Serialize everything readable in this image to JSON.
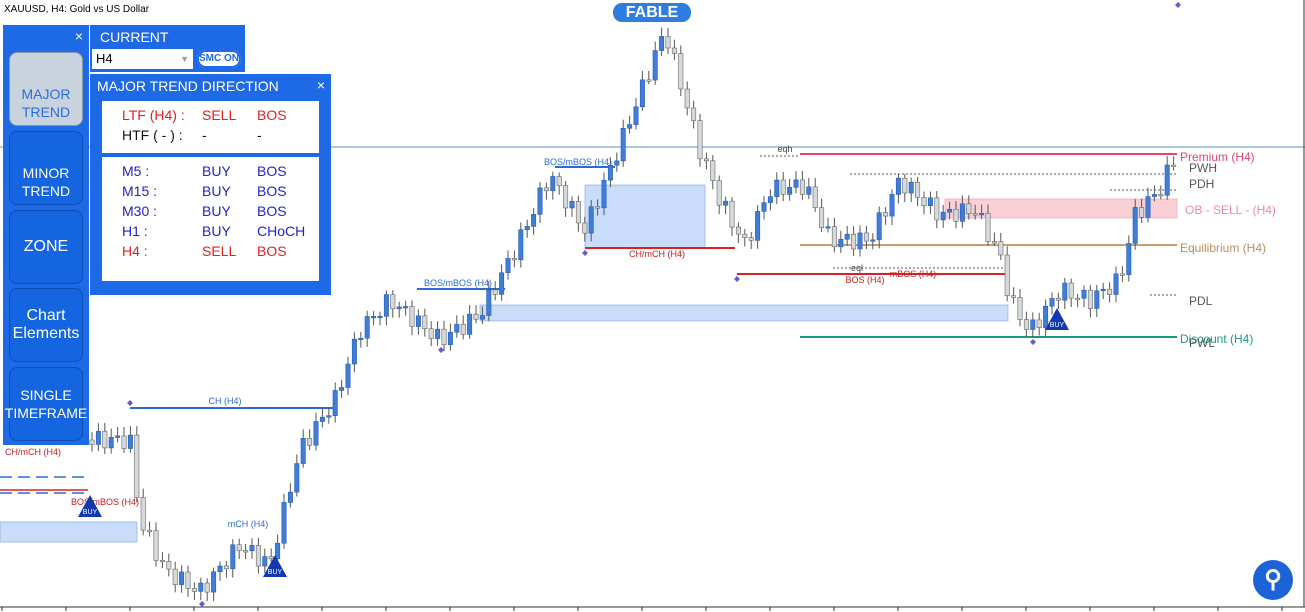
{
  "header": {
    "symbol": "XAUUSD, H4:  Gold vs US Dollar",
    "brand": "FABLE"
  },
  "side_menu": {
    "buttons": [
      "MAJOR TREND",
      "MINOR TREND",
      "ZONE",
      "Chart Elements",
      "SINGLE TIMEFRAME"
    ]
  },
  "timeframe_panel": {
    "title": "CURRENT",
    "selected": "H4",
    "toggle": "SMC ON"
  },
  "trend_panel": {
    "title": "MAJOR TREND DIRECTION",
    "rows": [
      [
        "LTF (H4) :",
        "SELL",
        "BOS"
      ],
      [
        "HTF ( - ) :",
        "-",
        "-"
      ],
      [
        "M5 :",
        "BUY",
        "BOS"
      ],
      [
        "M15 :",
        "BUY",
        "BOS"
      ],
      [
        "M30 :",
        "BUY",
        "BOS"
      ],
      [
        "H1 :",
        "BUY",
        "CHoCH"
      ],
      [
        "H4 :",
        "SELL",
        "BOS"
      ]
    ]
  },
  "structure_labels": [
    "CH (H4)",
    "BOS/mBOS (H4)",
    "BOS/mBOS (H4)",
    "CH/mCH (H4)",
    "BOS (H4)",
    "mBOS (H4)",
    "CH/mCH (H4)",
    "BOS/mBOS (H4)",
    "mCH (H4)",
    "eqh",
    "eql"
  ],
  "price_levels": [
    "Premium (H4)",
    "PWH",
    "PDH",
    "OB - SELL -  (H4)",
    "Equilibrium (H4)",
    "PDL",
    "Discount (H4)",
    "PWL"
  ],
  "signals": [
    "BUY",
    "BUY",
    "BUY"
  ]
}
